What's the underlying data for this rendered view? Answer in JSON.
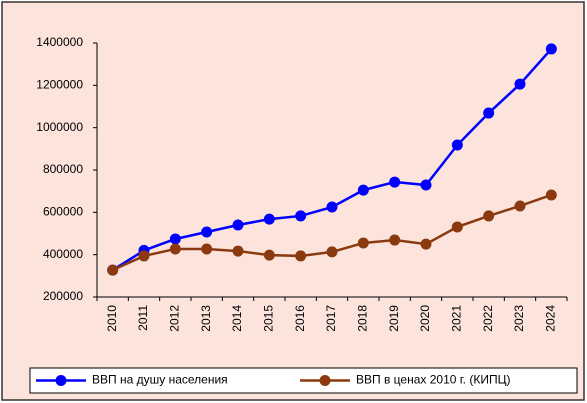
{
  "chart_data": {
    "type": "line",
    "categories": [
      "2010",
      "2011",
      "2012",
      "2013",
      "2014",
      "2015",
      "2016",
      "2017",
      "2018",
      "2019",
      "2020",
      "2021",
      "2022",
      "2023",
      "2024"
    ],
    "series": [
      {
        "name": "ВВП на душу населения",
        "color": "#0000ff",
        "values": [
          327000,
          420000,
          474000,
          507000,
          540000,
          568000,
          583000,
          625000,
          705000,
          743000,
          729000,
          918000,
          1069000,
          1206000,
          1372000
        ]
      },
      {
        "name": "ВВП в ценах 2010 г. (КИПЦ)",
        "color": "#8b3a0f",
        "values": [
          327000,
          394000,
          427000,
          427000,
          417000,
          398000,
          394000,
          413000,
          455000,
          469000,
          450000,
          531000,
          583000,
          630000,
          682000
        ]
      }
    ],
    "ylim": [
      200000,
      1400000
    ],
    "yticks": [
      200000,
      400000,
      600000,
      800000,
      1000000,
      1200000,
      1400000
    ],
    "legend": "bottom"
  }
}
